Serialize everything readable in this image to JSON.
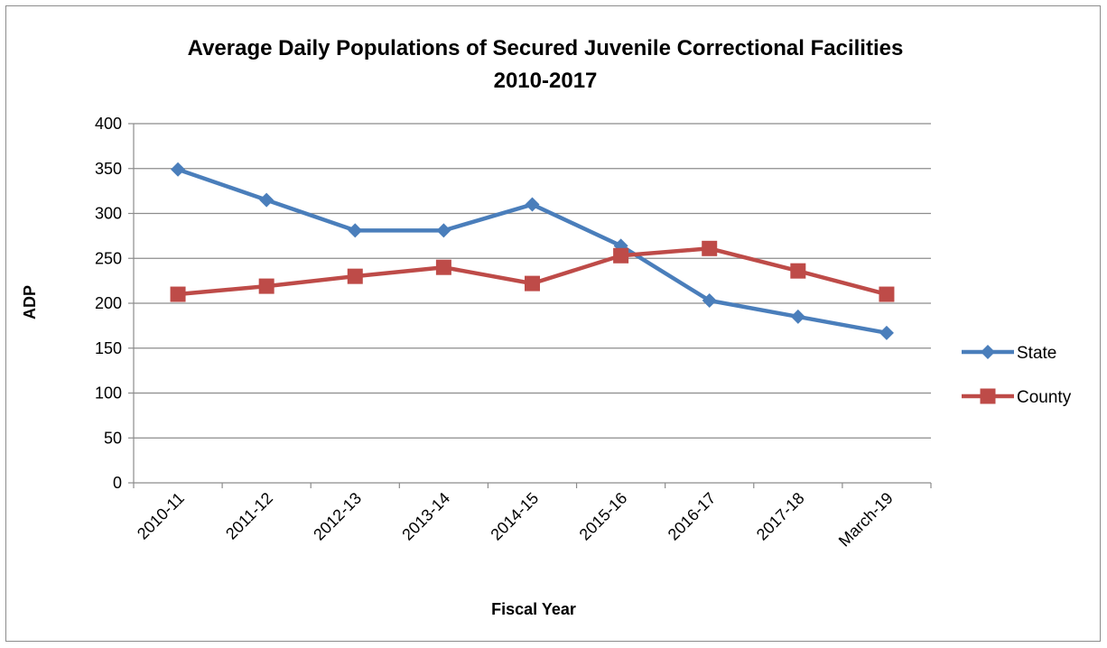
{
  "chart_data": {
    "type": "line",
    "title": "Average Daily Populations of Secured Juvenile Correctional Facilities",
    "subtitle": "2010-2017",
    "xlabel": "Fiscal Year",
    "ylabel": "ADP",
    "categories": [
      "2010-11",
      "2011-12",
      "2012-13",
      "2013-14",
      "2014-15",
      "2015-16",
      "2016-17",
      "2017-18",
      "March-19"
    ],
    "ylim": [
      0,
      400
    ],
    "yticks": [
      0,
      50,
      100,
      150,
      200,
      250,
      300,
      350,
      400
    ],
    "grid": true,
    "legend_position": "right",
    "series": [
      {
        "name": "State",
        "marker": "diamond",
        "color": "#4a7ebb",
        "values": [
          349,
          315,
          281,
          281,
          310,
          264,
          203,
          185,
          167
        ]
      },
      {
        "name": "County",
        "marker": "square",
        "color": "#be4b48",
        "values": [
          210,
          219,
          230,
          240,
          222,
          253,
          261,
          236,
          210
        ]
      }
    ]
  }
}
